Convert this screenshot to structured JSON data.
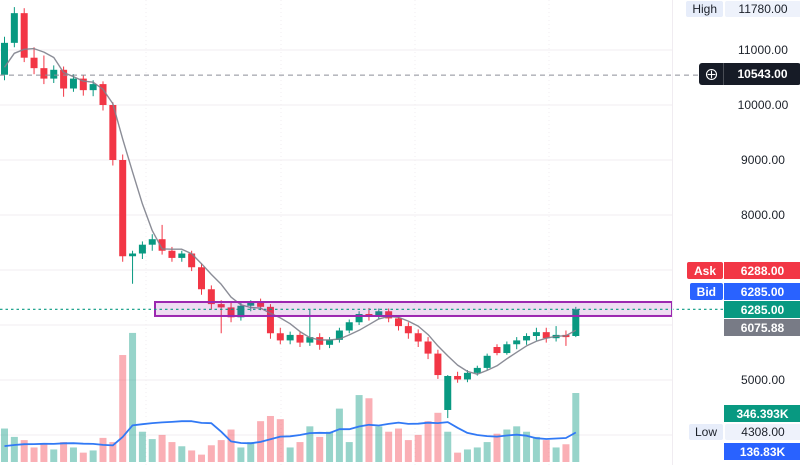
{
  "colors": {
    "background": "#ffffff",
    "up": "#089981",
    "down": "#f23645",
    "volume_up": "rgba(8,153,129,0.42)",
    "volume_down": "rgba(242,54,69,0.40)",
    "volume_ma_line": "#3179f5",
    "price_ma_line": "#7e818c",
    "grid": "#f2eef1",
    "crosshair_line": "#8c8f99",
    "crosshair_badge_bg": "#161b26",
    "current_price_line": "#089981",
    "rectangle_border": "#9c27b0",
    "rectangle_fill": "rgba(156,39,176,0.16)",
    "ask_bg": "#f23645",
    "bid_bg": "#2962ff",
    "last_bg": "#089981",
    "ma_badge_bg": "#787b86",
    "volume_badge_bg": "#089981",
    "volume_ma_badge_bg": "#2962ff",
    "axis_text": "#1b2029",
    "hilo_chip_bg": "#e7edfa"
  },
  "price_axis": {
    "high_label": "High",
    "high_value": "11780.00",
    "low_label": "Low",
    "low_value": "4308.00",
    "ticks": [
      {
        "label": "11000.00",
        "price": 11000
      },
      {
        "label": "10000.00",
        "price": 10000
      },
      {
        "label": "9000.00",
        "price": 9000
      },
      {
        "label": "8000.00",
        "price": 8000
      },
      {
        "label": "5000.00",
        "price": 5000
      }
    ],
    "crosshair": {
      "value": "10543.00",
      "price": 10543
    },
    "ask": {
      "label": "Ask",
      "value": "6288.00",
      "price": 6288
    },
    "bid": {
      "label": "Bid",
      "value": "6285.00",
      "price": 6285
    },
    "last": {
      "value": "6285.00",
      "price": 6285
    },
    "ma": {
      "value": "6075.88",
      "price": 6075.88
    },
    "volume_value": "346.393K",
    "volume_ma_value": "136.83K"
  },
  "chart_data": {
    "type": "candlestick",
    "title": "",
    "xlabel": "",
    "ylabel": "",
    "y_axis_ticks": [
      11000,
      10000,
      9000,
      8000,
      7000,
      6000,
      5000,
      4000
    ],
    "visible_price_range": [
      4100,
      11900
    ],
    "high": 11780,
    "low": 4308,
    "last_close": 6285,
    "legend_position": "none",
    "grid": true,
    "candles_ohlcv": [
      [
        10550,
        11240,
        10450,
        11130,
        168
      ],
      [
        11130,
        11780,
        11050,
        11670,
        126
      ],
      [
        11670,
        11760,
        10780,
        10860,
        110
      ],
      [
        10860,
        11050,
        10560,
        10670,
        73
      ],
      [
        10670,
        10900,
        10380,
        10480,
        89
      ],
      [
        10480,
        10720,
        10400,
        10640,
        63
      ],
      [
        10640,
        10700,
        10150,
        10300,
        100
      ],
      [
        10300,
        10560,
        10240,
        10480,
        73
      ],
      [
        10480,
        10540,
        10170,
        10270,
        47
      ],
      [
        10270,
        10450,
        10160,
        10380,
        58
      ],
      [
        10380,
        10430,
        9900,
        10000,
        121
      ],
      [
        10000,
        10050,
        8900,
        9000,
        100
      ],
      [
        9000,
        9100,
        7150,
        7250,
        537
      ],
      [
        7250,
        7350,
        6750,
        7300,
        648
      ],
      [
        7300,
        7520,
        7200,
        7460,
        152
      ],
      [
        7460,
        7650,
        7350,
        7560,
        115
      ],
      [
        7560,
        7820,
        7280,
        7350,
        136
      ],
      [
        7350,
        7420,
        7150,
        7220,
        100
      ],
      [
        7220,
        7350,
        7150,
        7300,
        79
      ],
      [
        7300,
        7350,
        6980,
        7050,
        58
      ],
      [
        7050,
        7120,
        6550,
        6650,
        37
      ],
      [
        6650,
        6720,
        6280,
        6380,
        84
      ],
      [
        6380,
        6450,
        5850,
        6320,
        110
      ],
      [
        6320,
        6420,
        6050,
        6140,
        163
      ],
      [
        6140,
        6400,
        6080,
        6350,
        73
      ],
      [
        6350,
        6450,
        6250,
        6400,
        100
      ],
      [
        6400,
        6480,
        6270,
        6330,
        205
      ],
      [
        6330,
        6380,
        5750,
        5850,
        231
      ],
      [
        5850,
        5950,
        5650,
        5720,
        215
      ],
      [
        5720,
        5880,
        5650,
        5820,
        73
      ],
      [
        5820,
        5870,
        5600,
        5680,
        100
      ],
      [
        5680,
        6280,
        5620,
        5780,
        179
      ],
      [
        5780,
        5850,
        5550,
        5640,
        126
      ],
      [
        5640,
        5780,
        5580,
        5730,
        152
      ],
      [
        5730,
        5950,
        5680,
        5900,
        268
      ],
      [
        5900,
        6100,
        5850,
        6050,
        100
      ],
      [
        6050,
        6250,
        6000,
        6200,
        336
      ],
      [
        6200,
        6310,
        6080,
        6150,
        320
      ],
      [
        6150,
        6300,
        6100,
        6250,
        179
      ],
      [
        6250,
        6300,
        6050,
        6120,
        152
      ],
      [
        6120,
        6180,
        5900,
        5980,
        168
      ],
      [
        5980,
        6050,
        5750,
        5850,
        110
      ],
      [
        5850,
        5920,
        5600,
        5700,
        136
      ],
      [
        5700,
        5780,
        5380,
        5480,
        205
      ],
      [
        5480,
        5550,
        5020,
        5090,
        247
      ],
      [
        4455,
        5090,
        4308,
        5073,
        152
      ],
      [
        5073,
        5150,
        4950,
        5010,
        47
      ],
      [
        5010,
        5180,
        4960,
        5130,
        63
      ],
      [
        5130,
        5260,
        5080,
        5220,
        73
      ],
      [
        5220,
        5480,
        5180,
        5440,
        100
      ],
      [
        5600,
        5650,
        5450,
        5490,
        142
      ],
      [
        5490,
        5700,
        5460,
        5650,
        163
      ],
      [
        5650,
        5780,
        5560,
        5720,
        179
      ],
      [
        5720,
        5850,
        5640,
        5800,
        152
      ],
      [
        5800,
        5950,
        5720,
        5870,
        126
      ],
      [
        5870,
        5950,
        5680,
        5760,
        110
      ],
      [
        5760,
        5980,
        5700,
        5820,
        73
      ],
      [
        5820,
        5900,
        5620,
        5780,
        89
      ],
      [
        5800,
        6330,
        5780,
        6285,
        346.393
      ]
    ],
    "overlays": {
      "price_ma": {
        "period": 5,
        "current_value": 6075.88
      },
      "volume_ma": {
        "period": 10,
        "current_value_k": 136.83
      },
      "crosshair_price": 10543,
      "current_price": 6285,
      "current_volume_k": 346.393,
      "rectangle_drawing": {
        "price_top": 6418,
        "price_bottom": 6164
      }
    }
  }
}
